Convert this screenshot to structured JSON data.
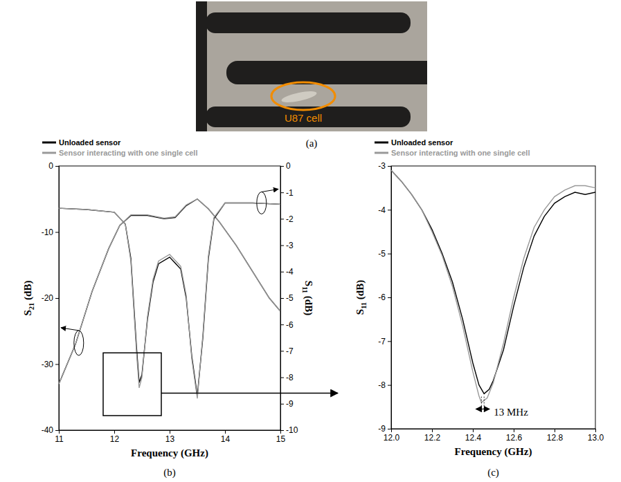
{
  "image_panel": {
    "label": "(a)",
    "annotation": "U87 cell"
  },
  "chart_data": [
    {
      "type": "line",
      "panel_label": "(b)",
      "xlabel": "Frequency (GHz)",
      "ylabel": "S21 (dB)",
      "y2label": "S11 (dB)",
      "xlim": [
        11,
        15
      ],
      "xticks": [
        11,
        12,
        13,
        14,
        15
      ],
      "ylim": [
        -40,
        0
      ],
      "yticks": [
        -40,
        -30,
        -20,
        -10,
        0
      ],
      "y2lim": [
        -10,
        0
      ],
      "y2ticks": [
        -10,
        -9,
        -8,
        -7,
        -6,
        -5,
        -4,
        -3,
        -2,
        -1,
        0
      ],
      "legend": "top-left",
      "series": [
        {
          "name": "Unloaded sensor",
          "color": "#000000",
          "x": [
            11,
            11.3,
            11.6,
            11.9,
            12.1,
            12.3,
            12.6,
            12.9,
            13.1,
            13.3,
            13.5,
            13.7,
            13.9,
            14.2,
            14.5,
            14.8,
            15
          ],
          "values": [
            -33,
            -27,
            -19,
            -12.5,
            -9,
            -7.5,
            -7.5,
            -8,
            -7.8,
            -6,
            -5,
            -6.5,
            -8.5,
            -12,
            -16,
            -20,
            -22
          ]
        },
        {
          "name": "Sensor interacting with one single cell",
          "color": "#999999",
          "x": [
            11,
            11.3,
            11.6,
            11.9,
            12.1,
            12.3,
            12.6,
            12.9,
            13.1,
            13.3,
            13.5,
            13.7,
            13.9,
            14.2,
            14.5,
            14.8,
            15
          ],
          "values": [
            -33,
            -27,
            -19,
            -12.5,
            -9,
            -7.4,
            -7.4,
            -7.9,
            -7.7,
            -5.9,
            -5,
            -6.5,
            -8.5,
            -12,
            -16,
            -20,
            -22
          ]
        },
        {
          "name": "Unloaded sensor",
          "color": "#000000",
          "axis": "y2",
          "x": [
            11,
            11.5,
            12,
            12.2,
            12.3,
            12.4,
            12.45,
            12.5,
            12.6,
            12.7,
            12.8,
            13,
            13.2,
            13.3,
            13.4,
            13.5,
            13.6,
            13.7,
            13.8,
            14,
            14.5,
            15
          ],
          "values": [
            -1.6,
            -1.65,
            -1.75,
            -2.2,
            -3.5,
            -6.8,
            -8.2,
            -7.9,
            -5.8,
            -4.4,
            -3.7,
            -3.45,
            -3.9,
            -5,
            -7.2,
            -8.7,
            -6.5,
            -3.5,
            -2,
            -1.4,
            -1.4,
            -1.45
          ]
        },
        {
          "name": "Sensor interacting with one single cell",
          "color": "#999999",
          "axis": "y2",
          "x": [
            11,
            11.5,
            12,
            12.2,
            12.3,
            12.4,
            12.45,
            12.5,
            12.6,
            12.7,
            12.8,
            13,
            13.2,
            13.3,
            13.4,
            13.5,
            13.6,
            13.7,
            13.8,
            14,
            14.5,
            15
          ],
          "values": [
            -1.6,
            -1.65,
            -1.75,
            -2.2,
            -3.6,
            -7,
            -8.4,
            -8,
            -5.7,
            -4.3,
            -3.6,
            -3.35,
            -3.8,
            -4.9,
            -7.3,
            -8.8,
            -6.4,
            -3.4,
            -1.95,
            -1.4,
            -1.4,
            -1.45
          ]
        }
      ],
      "zoom_box": {
        "xlim": [
          11.8,
          12.85
        ],
        "ylim": [
          -37.8,
          -28.3
        ]
      }
    },
    {
      "type": "line",
      "panel_label": "(c)",
      "xlabel": "Frequency (GHz)",
      "ylabel": "S11 (dB)",
      "xlim": [
        12,
        13
      ],
      "xticks": [
        {
          "value": 12,
          "label": "12.0"
        },
        {
          "value": 12.2,
          "label": "12.2"
        },
        {
          "value": 12.4,
          "label": "12.4"
        },
        {
          "value": 12.6,
          "label": "12.6"
        },
        {
          "value": 12.8,
          "label": "12.8"
        },
        {
          "value": 13,
          "label": "13.0"
        }
      ],
      "ylim": [
        -9,
        -3
      ],
      "yticks": [
        -9,
        -8,
        -7,
        -6,
        -5,
        -4,
        -3
      ],
      "legend": "top-left",
      "series": [
        {
          "name": "Unloaded sensor",
          "color": "#000000",
          "x": [
            12,
            12.05,
            12.1,
            12.15,
            12.2,
            12.25,
            12.3,
            12.35,
            12.4,
            12.43,
            12.455,
            12.48,
            12.5,
            12.55,
            12.6,
            12.65,
            12.7,
            12.75,
            12.8,
            12.85,
            12.9,
            12.95,
            13
          ],
          "values": [
            -3.1,
            -3.35,
            -3.65,
            -4,
            -4.45,
            -5,
            -5.65,
            -6.5,
            -7.5,
            -8,
            -8.2,
            -8.1,
            -7.9,
            -7.2,
            -6.2,
            -5.3,
            -4.6,
            -4.15,
            -3.85,
            -3.7,
            -3.6,
            -3.65,
            -3.6
          ]
        },
        {
          "name": "Sensor interacting with one single cell",
          "color": "#999999",
          "x": [
            12,
            12.05,
            12.1,
            12.15,
            12.2,
            12.25,
            12.3,
            12.35,
            12.4,
            12.43,
            12.442,
            12.47,
            12.5,
            12.55,
            12.6,
            12.65,
            12.7,
            12.75,
            12.8,
            12.85,
            12.9,
            12.95,
            13
          ],
          "values": [
            -3.1,
            -3.35,
            -3.65,
            -4,
            -4.5,
            -5.05,
            -5.75,
            -6.65,
            -7.7,
            -8.25,
            -8.4,
            -8.3,
            -7.95,
            -7.05,
            -6,
            -5.1,
            -4.4,
            -4,
            -3.7,
            -3.55,
            -3.45,
            -3.45,
            -3.5
          ]
        }
      ],
      "annotations": [
        {
          "text": "13 MHz",
          "x": [
            12.442,
            12.455
          ],
          "y": -8.55
        }
      ]
    }
  ]
}
